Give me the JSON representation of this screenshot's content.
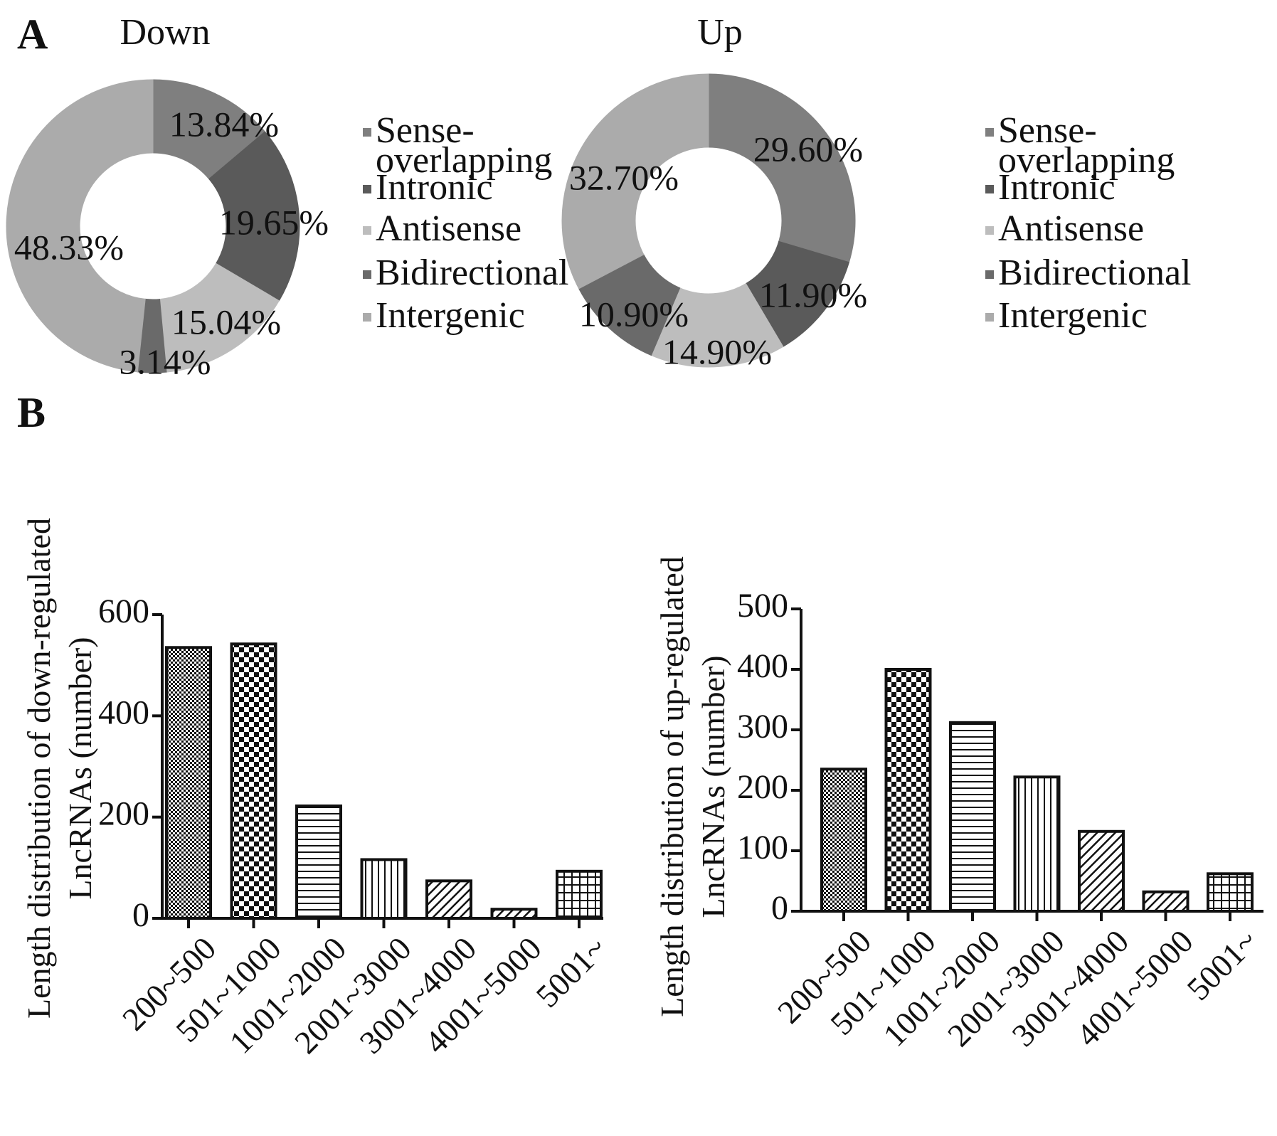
{
  "panel_a_letter": "A",
  "panel_b_letter": "B",
  "chart_data": [
    {
      "type": "pie",
      "title": "Down",
      "categories": [
        "Sense-overlapping",
        "Intronic",
        "Antisense",
        "Bidirectional",
        "Intergenic"
      ],
      "values": [
        13.84,
        19.65,
        15.04,
        3.14,
        48.33
      ],
      "labels": [
        "13.84%",
        "19.65%",
        "15.04%",
        "3.14%",
        "48.33%"
      ],
      "legend": [
        "Sense-\noverlapping",
        "Intronic",
        "Antisense",
        "Bidirectional",
        "Intergenic"
      ],
      "colors": [
        "#7f7f7f",
        "#5a5a5a",
        "#bdbdbd",
        "#6a6a6a",
        "#ababab"
      ],
      "legend_position": "right",
      "donut": true
    },
    {
      "type": "pie",
      "title": "Up",
      "categories": [
        "Sense-overlapping",
        "Intronic",
        "Antisense",
        "Bidirectional",
        "Intergenic"
      ],
      "values": [
        29.6,
        11.9,
        14.9,
        10.9,
        32.7
      ],
      "labels": [
        "29.60%",
        "11.90%",
        "14.90%",
        "10.90%",
        "32.70%"
      ],
      "legend": [
        "Sense-\noverlapping",
        "Intronic",
        "Antisense",
        "Bidirectional",
        "Intergenic"
      ],
      "colors": [
        "#7f7f7f",
        "#5a5a5a",
        "#bdbdbd",
        "#6a6a6a",
        "#ababab"
      ],
      "legend_position": "right",
      "donut": true
    },
    {
      "type": "bar",
      "categories": [
        "200~500",
        "501~1000",
        "1001~2000",
        "2001~3000",
        "3001~4000",
        "4001~5000",
        "5001~"
      ],
      "values": [
        535,
        542,
        222,
        116,
        74,
        18,
        93
      ],
      "ylabel": "Length distribution of down-regulated\nLncRNAs (number)",
      "ylim": [
        0,
        600
      ],
      "yticks": [
        0,
        200,
        400,
        600
      ],
      "patterns": [
        "fine-dots",
        "checker",
        "hlines",
        "vlines",
        "diag",
        "diag",
        "grid"
      ],
      "grid": false
    },
    {
      "type": "bar",
      "categories": [
        "200~500",
        "501~1000",
        "1001~2000",
        "2001~3000",
        "3001~4000",
        "4001~5000",
        "5001~"
      ],
      "values": [
        235,
        400,
        312,
        222,
        132,
        32,
        62
      ],
      "ylabel": "Length distribution of up-regulated\nLncRNAs (number)",
      "ylim": [
        0,
        500
      ],
      "yticks": [
        0,
        100,
        200,
        300,
        400,
        500
      ],
      "patterns": [
        "fine-dots",
        "checker",
        "hlines",
        "vlines",
        "diag",
        "diag",
        "grid"
      ],
      "grid": false
    }
  ]
}
